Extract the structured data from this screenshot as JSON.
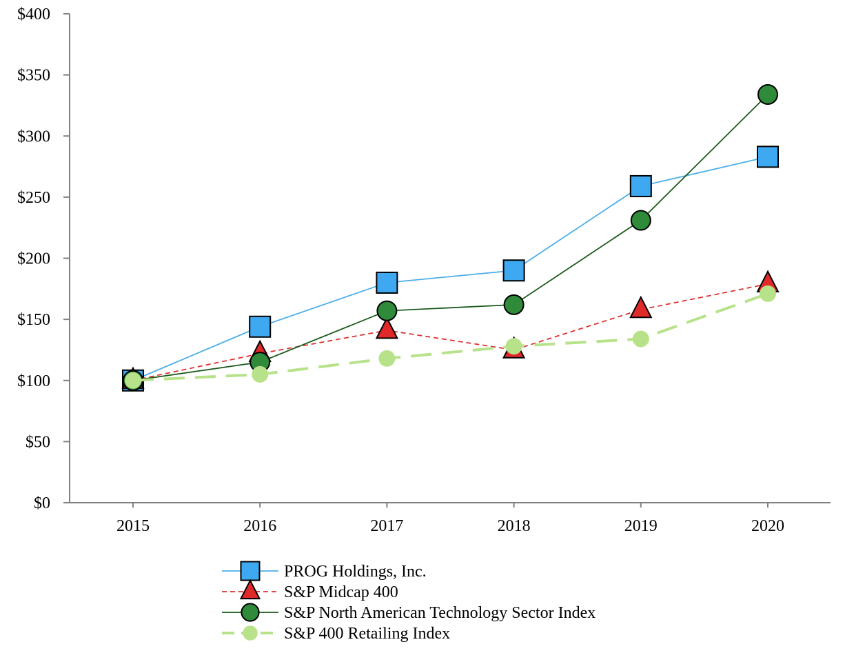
{
  "chart_data": {
    "type": "line",
    "title": "",
    "xlabel": "",
    "ylabel": "",
    "x": [
      "2015",
      "2016",
      "2017",
      "2018",
      "2019",
      "2020"
    ],
    "ylim": [
      0,
      400
    ],
    "yticks": [
      0,
      50,
      100,
      150,
      200,
      250,
      300,
      350,
      400
    ],
    "ytick_labels": [
      "$0",
      "$50",
      "$100",
      "$150",
      "$200",
      "$250",
      "$300",
      "$350",
      "$400"
    ],
    "grid": false,
    "legend_position": "bottom",
    "series": [
      {
        "name": "PROG Holdings, Inc.",
        "values": [
          100,
          144,
          180,
          190,
          259,
          283
        ],
        "color": "#4aaee8",
        "marker_fill": "#3ea8f0",
        "marker": "square",
        "line_style": "solid"
      },
      {
        "name": "S&P Midcap 400",
        "values": [
          100,
          122,
          141,
          125,
          158,
          179
        ],
        "color": "#e03030",
        "marker_fill": "#e02a2a",
        "marker": "triangle",
        "line_style": "dashed"
      },
      {
        "name": "S&P North American Technology Sector Index",
        "values": [
          100,
          115,
          157,
          162,
          231,
          334
        ],
        "color": "#1c5a1c",
        "marker_fill": "#2f8a3a",
        "marker": "circle",
        "line_style": "solid"
      },
      {
        "name": "S&P 400 Retailing Index",
        "values": [
          100,
          105,
          118,
          128,
          134,
          171
        ],
        "color": "#b8e28a",
        "marker_fill": "#b8e28a",
        "marker": "circle-nostroke",
        "line_style": "longdash"
      }
    ]
  }
}
